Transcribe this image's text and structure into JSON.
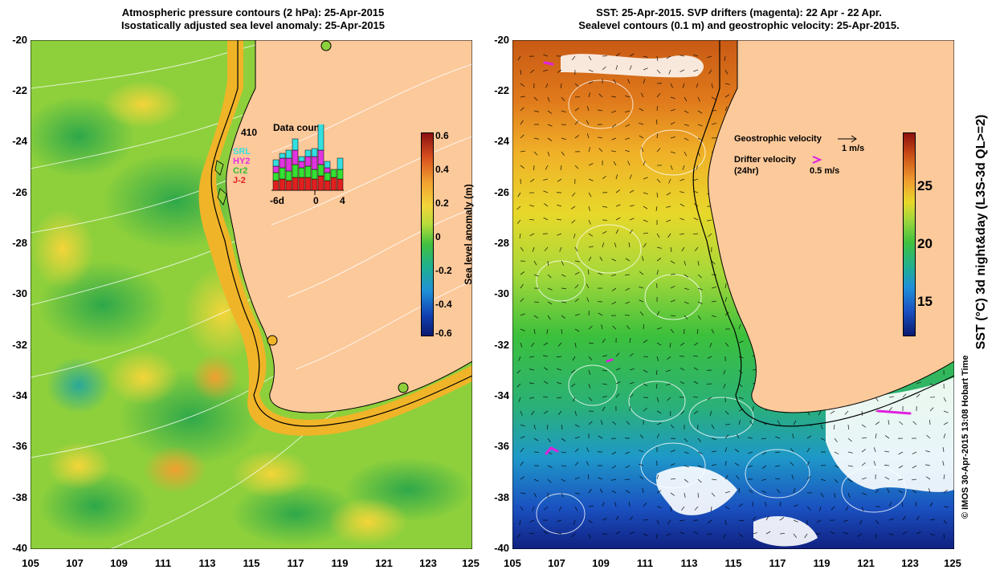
{
  "left_panel": {
    "title_line1": "Atmospheric pressure contours (2 hPa): 25-Apr-2015",
    "title_line2": "Isostatically adjusted sea level anomaly: 25-Apr-2015",
    "inset": {
      "total_count": "410",
      "title": "Data count",
      "legend": [
        "SRL",
        "HY2",
        "Cr2",
        "J-2"
      ],
      "legend_colors": [
        "#33e0e0",
        "#e033e0",
        "#33e033",
        "#e02020"
      ],
      "x_labels": [
        "-6d",
        "0",
        "4"
      ]
    },
    "colorbar": {
      "label": "Sea level anomaly (m)",
      "ticks": [
        "0.6",
        "0.4",
        "0.2",
        "0",
        "-0.2",
        "-0.4",
        "-0.6"
      ]
    }
  },
  "right_panel": {
    "title_line1": "SST: 25-Apr-2015. SVP drifters (magenta): 22 Apr - 22 Apr.",
    "title_line2": "Sealevel contours (0.1 m) and geostrophic velocity: 25-Apr-2015.",
    "legend": {
      "geo_label": "Geostrophic velocity",
      "geo_scale": "1 m/s",
      "drifter_label": "Drifter velocity",
      "drifter_sub": "(24hr)",
      "drifter_scale": "0.5 m/s"
    },
    "colorbar": {
      "label": "SST (°C) 3d night&day (L3S-3d QL>=2)",
      "ticks": [
        "25",
        "20",
        "15"
      ]
    },
    "credit": "© IMOS 30-Apr-2015 13:08 Hobart Time"
  },
  "axes": {
    "y_labels": [
      "-20",
      "-22",
      "-24",
      "-26",
      "-28",
      "-30",
      "-32",
      "-34",
      "-36",
      "-38",
      "-40"
    ],
    "x_labels": [
      "105",
      "107",
      "109",
      "111",
      "113",
      "115",
      "117",
      "119",
      "121",
      "123",
      "125"
    ]
  },
  "colors": {
    "land": "#fcc99b",
    "coast_band": "#f0b428"
  }
}
